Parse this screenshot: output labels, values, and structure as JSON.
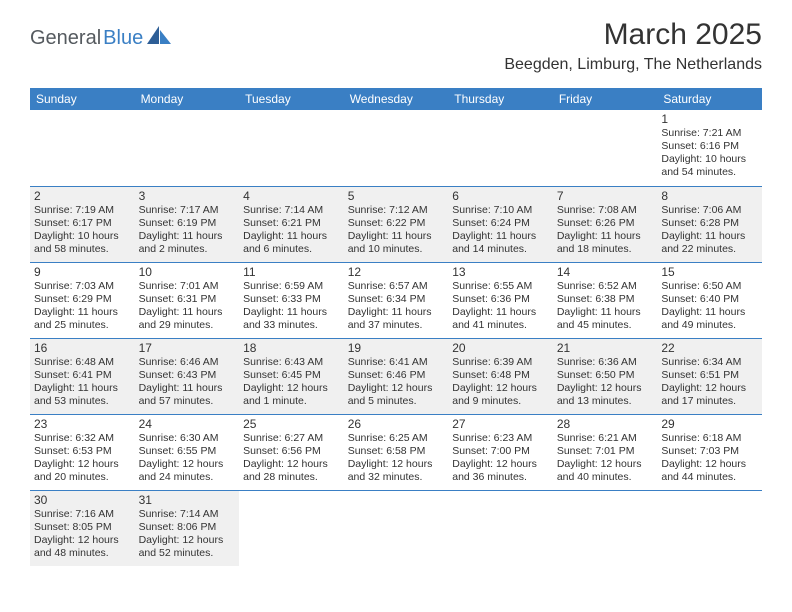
{
  "logo": {
    "text1": "General",
    "text2": "Blue"
  },
  "title": "March 2025",
  "location": "Beegden, Limburg, The Netherlands",
  "colors": {
    "header_bg": "#3a7fc4",
    "header_text": "#ffffff",
    "border": "#3a7fc4",
    "shaded": "#f0f0f0",
    "text": "#333333",
    "logo_gray": "#555a5f",
    "logo_blue": "#3a7fc4"
  },
  "columns": [
    "Sunday",
    "Monday",
    "Tuesday",
    "Wednesday",
    "Thursday",
    "Friday",
    "Saturday"
  ],
  "weeks": [
    [
      {
        "empty": true
      },
      {
        "empty": true
      },
      {
        "empty": true
      },
      {
        "empty": true
      },
      {
        "empty": true
      },
      {
        "empty": true
      },
      {
        "day": "1",
        "sunrise": "Sunrise: 7:21 AM",
        "sunset": "Sunset: 6:16 PM",
        "daylight": "Daylight: 10 hours and 54 minutes.",
        "shaded": false
      }
    ],
    [
      {
        "day": "2",
        "sunrise": "Sunrise: 7:19 AM",
        "sunset": "Sunset: 6:17 PM",
        "daylight": "Daylight: 10 hours and 58 minutes.",
        "shaded": true
      },
      {
        "day": "3",
        "sunrise": "Sunrise: 7:17 AM",
        "sunset": "Sunset: 6:19 PM",
        "daylight": "Daylight: 11 hours and 2 minutes.",
        "shaded": true
      },
      {
        "day": "4",
        "sunrise": "Sunrise: 7:14 AM",
        "sunset": "Sunset: 6:21 PM",
        "daylight": "Daylight: 11 hours and 6 minutes.",
        "shaded": true
      },
      {
        "day": "5",
        "sunrise": "Sunrise: 7:12 AM",
        "sunset": "Sunset: 6:22 PM",
        "daylight": "Daylight: 11 hours and 10 minutes.",
        "shaded": true
      },
      {
        "day": "6",
        "sunrise": "Sunrise: 7:10 AM",
        "sunset": "Sunset: 6:24 PM",
        "daylight": "Daylight: 11 hours and 14 minutes.",
        "shaded": true
      },
      {
        "day": "7",
        "sunrise": "Sunrise: 7:08 AM",
        "sunset": "Sunset: 6:26 PM",
        "daylight": "Daylight: 11 hours and 18 minutes.",
        "shaded": true
      },
      {
        "day": "8",
        "sunrise": "Sunrise: 7:06 AM",
        "sunset": "Sunset: 6:28 PM",
        "daylight": "Daylight: 11 hours and 22 minutes.",
        "shaded": true
      }
    ],
    [
      {
        "day": "9",
        "sunrise": "Sunrise: 7:03 AM",
        "sunset": "Sunset: 6:29 PM",
        "daylight": "Daylight: 11 hours and 25 minutes.",
        "shaded": false
      },
      {
        "day": "10",
        "sunrise": "Sunrise: 7:01 AM",
        "sunset": "Sunset: 6:31 PM",
        "daylight": "Daylight: 11 hours and 29 minutes.",
        "shaded": false
      },
      {
        "day": "11",
        "sunrise": "Sunrise: 6:59 AM",
        "sunset": "Sunset: 6:33 PM",
        "daylight": "Daylight: 11 hours and 33 minutes.",
        "shaded": false
      },
      {
        "day": "12",
        "sunrise": "Sunrise: 6:57 AM",
        "sunset": "Sunset: 6:34 PM",
        "daylight": "Daylight: 11 hours and 37 minutes.",
        "shaded": false
      },
      {
        "day": "13",
        "sunrise": "Sunrise: 6:55 AM",
        "sunset": "Sunset: 6:36 PM",
        "daylight": "Daylight: 11 hours and 41 minutes.",
        "shaded": false
      },
      {
        "day": "14",
        "sunrise": "Sunrise: 6:52 AM",
        "sunset": "Sunset: 6:38 PM",
        "daylight": "Daylight: 11 hours and 45 minutes.",
        "shaded": false
      },
      {
        "day": "15",
        "sunrise": "Sunrise: 6:50 AM",
        "sunset": "Sunset: 6:40 PM",
        "daylight": "Daylight: 11 hours and 49 minutes.",
        "shaded": false
      }
    ],
    [
      {
        "day": "16",
        "sunrise": "Sunrise: 6:48 AM",
        "sunset": "Sunset: 6:41 PM",
        "daylight": "Daylight: 11 hours and 53 minutes.",
        "shaded": true
      },
      {
        "day": "17",
        "sunrise": "Sunrise: 6:46 AM",
        "sunset": "Sunset: 6:43 PM",
        "daylight": "Daylight: 11 hours and 57 minutes.",
        "shaded": true
      },
      {
        "day": "18",
        "sunrise": "Sunrise: 6:43 AM",
        "sunset": "Sunset: 6:45 PM",
        "daylight": "Daylight: 12 hours and 1 minute.",
        "shaded": true
      },
      {
        "day": "19",
        "sunrise": "Sunrise: 6:41 AM",
        "sunset": "Sunset: 6:46 PM",
        "daylight": "Daylight: 12 hours and 5 minutes.",
        "shaded": true
      },
      {
        "day": "20",
        "sunrise": "Sunrise: 6:39 AM",
        "sunset": "Sunset: 6:48 PM",
        "daylight": "Daylight: 12 hours and 9 minutes.",
        "shaded": true
      },
      {
        "day": "21",
        "sunrise": "Sunrise: 6:36 AM",
        "sunset": "Sunset: 6:50 PM",
        "daylight": "Daylight: 12 hours and 13 minutes.",
        "shaded": true
      },
      {
        "day": "22",
        "sunrise": "Sunrise: 6:34 AM",
        "sunset": "Sunset: 6:51 PM",
        "daylight": "Daylight: 12 hours and 17 minutes.",
        "shaded": true
      }
    ],
    [
      {
        "day": "23",
        "sunrise": "Sunrise: 6:32 AM",
        "sunset": "Sunset: 6:53 PM",
        "daylight": "Daylight: 12 hours and 20 minutes.",
        "shaded": false
      },
      {
        "day": "24",
        "sunrise": "Sunrise: 6:30 AM",
        "sunset": "Sunset: 6:55 PM",
        "daylight": "Daylight: 12 hours and 24 minutes.",
        "shaded": false
      },
      {
        "day": "25",
        "sunrise": "Sunrise: 6:27 AM",
        "sunset": "Sunset: 6:56 PM",
        "daylight": "Daylight: 12 hours and 28 minutes.",
        "shaded": false
      },
      {
        "day": "26",
        "sunrise": "Sunrise: 6:25 AM",
        "sunset": "Sunset: 6:58 PM",
        "daylight": "Daylight: 12 hours and 32 minutes.",
        "shaded": false
      },
      {
        "day": "27",
        "sunrise": "Sunrise: 6:23 AM",
        "sunset": "Sunset: 7:00 PM",
        "daylight": "Daylight: 12 hours and 36 minutes.",
        "shaded": false
      },
      {
        "day": "28",
        "sunrise": "Sunrise: 6:21 AM",
        "sunset": "Sunset: 7:01 PM",
        "daylight": "Daylight: 12 hours and 40 minutes.",
        "shaded": false
      },
      {
        "day": "29",
        "sunrise": "Sunrise: 6:18 AM",
        "sunset": "Sunset: 7:03 PM",
        "daylight": "Daylight: 12 hours and 44 minutes.",
        "shaded": false
      }
    ],
    [
      {
        "day": "30",
        "sunrise": "Sunrise: 7:16 AM",
        "sunset": "Sunset: 8:05 PM",
        "daylight": "Daylight: 12 hours and 48 minutes.",
        "shaded": true
      },
      {
        "day": "31",
        "sunrise": "Sunrise: 7:14 AM",
        "sunset": "Sunset: 8:06 PM",
        "daylight": "Daylight: 12 hours and 52 minutes.",
        "shaded": true
      },
      {
        "empty": true
      },
      {
        "empty": true
      },
      {
        "empty": true
      },
      {
        "empty": true
      },
      {
        "empty": true
      }
    ]
  ]
}
